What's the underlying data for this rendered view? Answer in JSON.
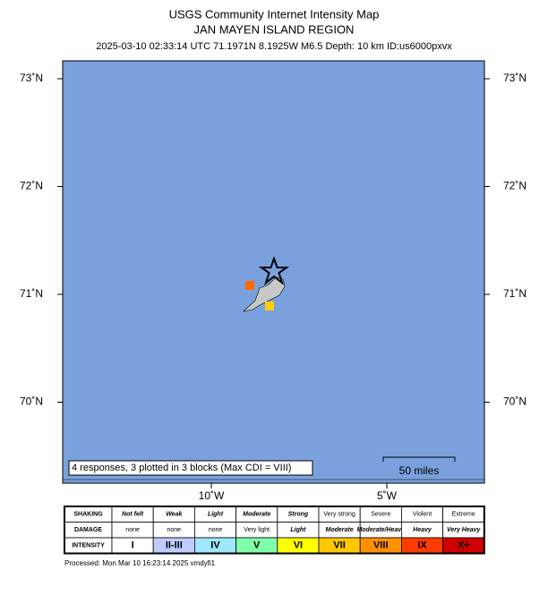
{
  "header": {
    "title": "USGS Community Internet Intensity Map",
    "region": "JAN MAYEN ISLAND REGION",
    "details": "2025-03-10 02:33:14 UTC 71.1971N 8.1925W M6.5 Depth: 10 km ID:us6000pxvx"
  },
  "map": {
    "lat_ticks": [
      {
        "value": 73,
        "label": "73˚N"
      },
      {
        "value": 72,
        "label": "72˚N"
      },
      {
        "value": 71,
        "label": "71˚N"
      },
      {
        "value": 70,
        "label": "70˚N"
      }
    ],
    "lon_ticks": [
      {
        "value": -10,
        "label": "10˚W"
      },
      {
        "value": -5,
        "label": "5˚W"
      }
    ],
    "note": "4 responses, 3 plotted in 3 blocks (Max CDI = VIII)",
    "scale": "50 miles"
  },
  "legend": {
    "rows": [
      {
        "label": "SHAKING",
        "cells": [
          "Not felt",
          "Weak",
          "Light",
          "Moderate",
          "Strong",
          "Very strong",
          "Severe",
          "Violent",
          "Extreme"
        ]
      },
      {
        "label": "DAMAGE",
        "cells": [
          "none",
          "none",
          "none",
          "Very light",
          "Light",
          "Moderate",
          "Moderate/Heavy",
          "Heavy",
          "Very Heavy"
        ]
      },
      {
        "label": "INTENSITY",
        "cells": [
          "I",
          "II-III",
          "IV",
          "V",
          "VI",
          "VII",
          "VIII",
          "IX",
          "X+"
        ]
      }
    ]
  },
  "footer": "Processed: Mon Mar 10 16:23:14 2025 vmdyfi1"
}
